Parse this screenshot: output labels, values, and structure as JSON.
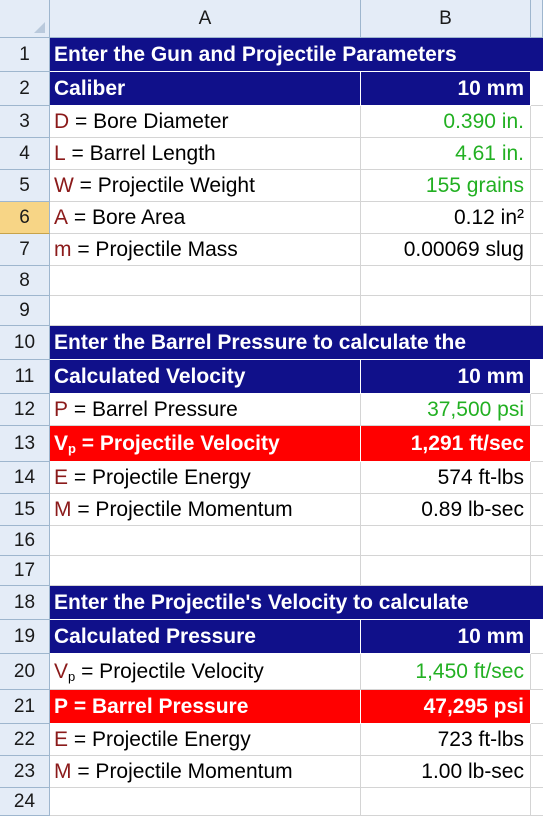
{
  "columns": {
    "a": "A",
    "b": "B"
  },
  "rows": [
    {
      "num": "1",
      "kind": "span",
      "style": "blue",
      "text": "Enter the Gun and Projectile Parameters"
    },
    {
      "num": "2",
      "kind": "split",
      "style": "blue",
      "label": "Caliber",
      "value": "10 mm"
    },
    {
      "num": "3",
      "kind": "param",
      "sym": "D",
      "label": " = Bore Diameter",
      "value": "0.390 in.",
      "vcolor": "green"
    },
    {
      "num": "4",
      "kind": "param",
      "sym": "L",
      "label": " = Barrel Length",
      "value": "4.61 in.",
      "vcolor": "green"
    },
    {
      "num": "5",
      "kind": "param",
      "sym": "W",
      "label": " = Projectile Weight",
      "value": "155 grains",
      "vcolor": "green"
    },
    {
      "num": "6",
      "kind": "param",
      "sym": "A",
      "label": " = Bore Area",
      "value": "0.12 in²",
      "vcolor": "dark",
      "selected": true
    },
    {
      "num": "7",
      "kind": "param",
      "sym": "m",
      "label": " = Projectile Mass",
      "value": "0.00069 slug",
      "vcolor": "dark"
    },
    {
      "num": "8",
      "kind": "empty"
    },
    {
      "num": "9",
      "kind": "empty"
    },
    {
      "num": "10",
      "kind": "span",
      "style": "blue",
      "text": "Enter the Barrel Pressure to calculate the"
    },
    {
      "num": "11",
      "kind": "split",
      "style": "blue",
      "label": "Calculated Velocity",
      "value": "10 mm"
    },
    {
      "num": "12",
      "kind": "param",
      "sym": "P",
      "label": " = Barrel Pressure",
      "value": "37,500 psi",
      "vcolor": "green"
    },
    {
      "num": "13",
      "kind": "param",
      "style": "red",
      "sym": "V",
      "sub": "p",
      "label": " = Projectile Velocity",
      "value": "1,291 ft/sec"
    },
    {
      "num": "14",
      "kind": "param",
      "sym": "E",
      "label": " = Projectile Energy",
      "value": "574 ft-lbs",
      "vcolor": "dark"
    },
    {
      "num": "15",
      "kind": "param",
      "sym": "M",
      "label": " = Projectile Momentum",
      "value": "0.89 lb-sec",
      "vcolor": "dark"
    },
    {
      "num": "16",
      "kind": "empty"
    },
    {
      "num": "17",
      "kind": "empty"
    },
    {
      "num": "18",
      "kind": "span",
      "style": "blue",
      "text": "Enter the Projectile's Velocity to calculate"
    },
    {
      "num": "19",
      "kind": "split",
      "style": "blue",
      "label": "Calculated Pressure",
      "value": "10 mm"
    },
    {
      "num": "20",
      "kind": "param",
      "sym": "V",
      "sub": "p",
      "label": " = Projectile Velocity",
      "value": "1,450 ft/sec",
      "vcolor": "green"
    },
    {
      "num": "21",
      "kind": "param",
      "style": "red",
      "sym": "P",
      "label": " = Barrel Pressure",
      "value": "47,295 psi"
    },
    {
      "num": "22",
      "kind": "param",
      "sym": "E",
      "label": " = Projectile Energy",
      "value": "723 ft-lbs",
      "vcolor": "dark"
    },
    {
      "num": "23",
      "kind": "param",
      "sym": "M",
      "label": " = Projectile Momentum",
      "value": "1.00 lb-sec",
      "vcolor": "dark"
    },
    {
      "num": "24",
      "kind": "empty"
    }
  ],
  "colors": {
    "header_fill": "#10108a",
    "highlight_fill": "#ff0000",
    "input_text": "#22b022",
    "symbol_text": "#8b1a1a",
    "selected_row_header": "#f7d586",
    "header_bg": "#e4ecf7"
  }
}
